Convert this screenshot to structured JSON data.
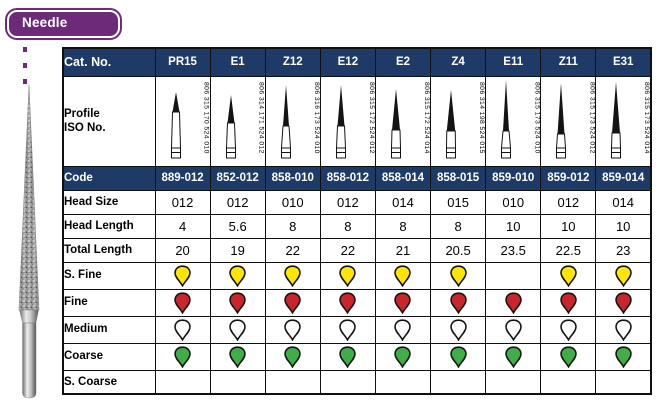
{
  "badge": {
    "label": "Needle",
    "color": "#6d2a79"
  },
  "colors": {
    "header_navy": "#1e3a66",
    "badge_purple": "#6d2a79",
    "grit_yellow": "#ffe500",
    "grit_red": "#c9252c",
    "grit_green": "#3fae49",
    "grit_white": "#ffffff"
  },
  "illustration": {
    "name": "needle-diamond-bur-photo"
  },
  "table": {
    "cat_no_label": "Cat. No.",
    "columns": [
      "PR15",
      "E1",
      "Z12",
      "E12",
      "E2",
      "Z4",
      "E11",
      "Z11",
      "E31"
    ],
    "profile_label": "Profile\nISO No.",
    "iso_numbers": [
      "806 315 170 524 010",
      "806 314 171 524 012",
      "806 316 173 524 010",
      "806 315 172 524 012",
      "806 315 172 524 014",
      "806 314 198 524 015",
      "806 315 173 524 010",
      "806 315 173 524 012",
      "806 315 173 524 014"
    ],
    "code_row": {
      "label": "Code",
      "values": [
        "889-012",
        "852-012",
        "858-010",
        "858-012",
        "858-014",
        "858-015",
        "859-010",
        "859-012",
        "859-014"
      ]
    },
    "spec_rows": [
      {
        "label": "Head Size",
        "values": [
          "012",
          "012",
          "010",
          "012",
          "014",
          "015",
          "010",
          "012",
          "014"
        ]
      },
      {
        "label": "Head Length",
        "values": [
          "4",
          "5.6",
          "8",
          "8",
          "8",
          "8",
          "10",
          "10",
          "10"
        ]
      },
      {
        "label": "Total Length",
        "values": [
          "20",
          "19",
          "22",
          "22",
          "21",
          "20.5",
          "23.5",
          "22.5",
          "23"
        ]
      }
    ],
    "grit_rows": [
      {
        "label": "S. Fine",
        "drop_color": "#ffe500",
        "present": [
          1,
          1,
          1,
          1,
          1,
          1,
          0,
          1,
          1
        ]
      },
      {
        "label": "Fine",
        "drop_color": "#c9252c",
        "present": [
          1,
          1,
          1,
          1,
          1,
          1,
          1,
          1,
          1
        ]
      },
      {
        "label": "Medium",
        "drop_color": "#ffffff",
        "present": [
          1,
          1,
          1,
          1,
          1,
          1,
          1,
          1,
          1
        ]
      },
      {
        "label": "Coarse",
        "drop_color": "#3fae49",
        "present": [
          1,
          1,
          1,
          1,
          1,
          1,
          1,
          1,
          1
        ]
      },
      {
        "label": "S. Coarse",
        "drop_color": "",
        "present": [
          0,
          0,
          0,
          0,
          0,
          0,
          0,
          0,
          0
        ]
      }
    ]
  }
}
